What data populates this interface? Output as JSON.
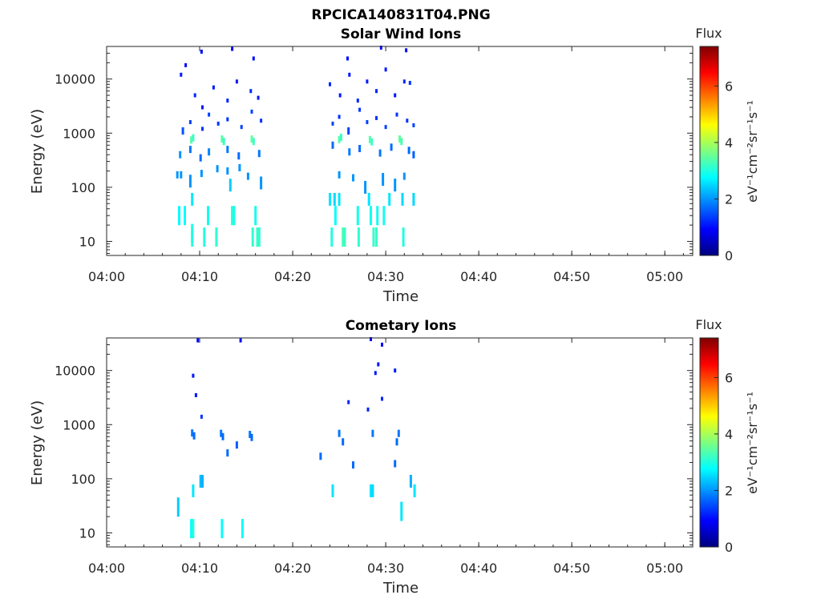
{
  "figure_title": "RPCICA140831T04.PNG",
  "colors": {
    "axis": "#262626",
    "colormap": [
      "#00007f",
      "#0000ff",
      "#007fff",
      "#00ffff",
      "#7fff7f",
      "#ffff00",
      "#ff7f00",
      "#ff0000",
      "#7f0000"
    ]
  },
  "chart_data": [
    {
      "type": "heatmap",
      "title": "Solar Wind Ions",
      "xlabel": "Time",
      "ylabel": "Energy (eV)",
      "yscale": "log",
      "x_range": [
        "04:00",
        "05:03"
      ],
      "y_range": [
        5.5,
        40000
      ],
      "x_ticks": [
        "04:00",
        "04:10",
        "04:20",
        "04:30",
        "04:40",
        "04:50",
        "05:00"
      ],
      "y_ticks": [
        "10",
        "100",
        "1000",
        "10000"
      ],
      "colorbar": {
        "label": "Flux",
        "units": "eV⁻¹cm⁻²sr⁻¹s⁻¹",
        "range": [
          0,
          7.4
        ],
        "ticks": [
          "0",
          "2",
          "4",
          "6"
        ]
      },
      "points": [
        [
          "04:09.2",
          12,
          3.1
        ],
        [
          "04:09.2",
          14,
          3.0
        ],
        [
          "04:10.5",
          12,
          3.0
        ],
        [
          "04:11.8",
          12,
          3.1
        ],
        [
          "04:15.7",
          12,
          3.1
        ],
        [
          "04:16.2",
          12,
          3.2
        ],
        [
          "04:16.4",
          12,
          3.1
        ],
        [
          "04:24.2",
          12,
          3.0
        ],
        [
          "04:25.4",
          12,
          3.3
        ],
        [
          "04:25.6",
          12,
          3.2
        ],
        [
          "04:27.1",
          12,
          3.1
        ],
        [
          "04:28.7",
          12,
          3.1
        ],
        [
          "04:29.0",
          12,
          3.2
        ],
        [
          "04:31.9",
          12,
          3.0
        ],
        [
          "04:07.8",
          30,
          2.8
        ],
        [
          "04:08.4",
          30,
          2.8
        ],
        [
          "04:10.9",
          30,
          2.9
        ],
        [
          "04:13.5",
          30,
          3.0
        ],
        [
          "04:13.7",
          30,
          3.0
        ],
        [
          "04:16.0",
          30,
          2.9
        ],
        [
          "04:24.6",
          30,
          2.8
        ],
        [
          "04:27.0",
          30,
          2.9
        ],
        [
          "04:28.4",
          30,
          2.9
        ],
        [
          "04:29.1",
          30,
          2.9
        ],
        [
          "04:29.8",
          30,
          2.9
        ],
        [
          "04:09.2",
          60,
          2.6
        ],
        [
          "04:13.3",
          110,
          2.4
        ],
        [
          "04:24.0",
          60,
          2.6
        ],
        [
          "04:24.5",
          60,
          2.5
        ],
        [
          "04:25.0",
          60,
          2.6
        ],
        [
          "04:28.2",
          60,
          2.6
        ],
        [
          "04:30.4",
          60,
          2.6
        ],
        [
          "04:31.8",
          60,
          2.5
        ],
        [
          "04:33.0",
          60,
          2.5
        ],
        [
          "04:07.6",
          170,
          2.0
        ],
        [
          "04:08.0",
          170,
          2.0
        ],
        [
          "04:09.0",
          130,
          2.0
        ],
        [
          "04:10.2",
          180,
          2.0
        ],
        [
          "04:11.9",
          220,
          2.0
        ],
        [
          "04:13.0",
          200,
          2.0
        ],
        [
          "04:14.3",
          230,
          2.0
        ],
        [
          "04:15.2",
          160,
          2.0
        ],
        [
          "04:16.6",
          120,
          2.0
        ],
        [
          "04:25.0",
          170,
          2.0
        ],
        [
          "04:26.5",
          150,
          2.0
        ],
        [
          "04:27.8",
          100,
          2.0
        ],
        [
          "04:29.7",
          140,
          2.0
        ],
        [
          "04:31.0",
          110,
          2.0
        ],
        [
          "04:32.0",
          160,
          2.0
        ],
        [
          "04:09.1",
          750,
          3.4
        ],
        [
          "04:09.3",
          820,
          3.2
        ],
        [
          "04:12.4",
          780,
          3.4
        ],
        [
          "04:12.6",
          700,
          3.2
        ],
        [
          "04:15.6",
          780,
          3.5
        ],
        [
          "04:15.8",
          700,
          3.2
        ],
        [
          "04:25.0",
          760,
          3.4
        ],
        [
          "04:25.2",
          840,
          3.2
        ],
        [
          "04:28.3",
          760,
          3.4
        ],
        [
          "04:28.5",
          690,
          3.2
        ],
        [
          "04:31.5",
          780,
          3.5
        ],
        [
          "04:31.7",
          700,
          3.3
        ],
        [
          "04:07.9",
          400,
          2.0
        ],
        [
          "04:09.0",
          500,
          1.8
        ],
        [
          "04:10.1",
          350,
          1.7
        ],
        [
          "04:11.0",
          450,
          1.9
        ],
        [
          "04:13.0",
          500,
          1.8
        ],
        [
          "04:14.2",
          380,
          1.7
        ],
        [
          "04:16.4",
          420,
          1.8
        ],
        [
          "04:24.3",
          600,
          1.7
        ],
        [
          "04:26.1",
          450,
          1.8
        ],
        [
          "04:27.2",
          520,
          1.7
        ],
        [
          "04:29.4",
          430,
          1.8
        ],
        [
          "04:30.6",
          550,
          1.7
        ],
        [
          "04:32.5",
          480,
          1.7
        ],
        [
          "04:33.0",
          400,
          1.6
        ],
        [
          "04:08.2",
          1100,
          1.5
        ],
        [
          "04:09.0",
          1600,
          1.4
        ],
        [
          "04:10.3",
          1200,
          1.3
        ],
        [
          "04:11.0",
          2200,
          1.4
        ],
        [
          "04:12.0",
          1500,
          1.3
        ],
        [
          "04:13.0",
          1800,
          1.3
        ],
        [
          "04:14.5",
          1300,
          1.4
        ],
        [
          "04:15.6",
          2500,
          1.4
        ],
        [
          "04:16.6",
          1700,
          1.3
        ],
        [
          "04:24.3",
          1500,
          1.4
        ],
        [
          "04:25.0",
          2000,
          1.3
        ],
        [
          "04:26.0",
          1100,
          1.4
        ],
        [
          "04:27.2",
          2700,
          1.3
        ],
        [
          "04:28.0",
          1600,
          1.4
        ],
        [
          "04:29.0",
          1900,
          1.3
        ],
        [
          "04:30.0",
          1300,
          1.4
        ],
        [
          "04:31.2",
          2200,
          1.3
        ],
        [
          "04:32.3",
          1700,
          1.3
        ],
        [
          "04:33.0",
          1400,
          1.4
        ],
        [
          "04:08.0",
          12000,
          1.1
        ],
        [
          "04:09.5",
          5000,
          1.2
        ],
        [
          "04:10.3",
          3000,
          1.1
        ],
        [
          "04:11.5",
          7000,
          1.1
        ],
        [
          "04:13.0",
          4000,
          1.2
        ],
        [
          "04:14.0",
          9000,
          1.1
        ],
        [
          "04:15.5",
          6000,
          1.2
        ],
        [
          "04:16.3",
          4500,
          1.1
        ],
        [
          "04:24.0",
          8000,
          1.2
        ],
        [
          "04:25.1",
          5000,
          1.1
        ],
        [
          "04:26.1",
          12000,
          1.1
        ],
        [
          "04:27.0",
          4000,
          1.2
        ],
        [
          "04:28.0",
          9000,
          1.1
        ],
        [
          "04:29.0",
          6000,
          1.2
        ],
        [
          "04:30.0",
          15000,
          1.1
        ],
        [
          "04:31.0",
          5000,
          1.1
        ],
        [
          "04:32.0",
          9000,
          1.2
        ],
        [
          "04:32.6",
          8500,
          1.3
        ],
        [
          "04:08.5",
          18000,
          1.0
        ],
        [
          "04:10.2",
          32000,
          1.0
        ],
        [
          "04:13.5",
          36000,
          1.0
        ],
        [
          "04:15.8",
          24000,
          1.0
        ],
        [
          "04:25.9",
          24000,
          1.0
        ],
        [
          "04:29.5",
          38000,
          1.0
        ],
        [
          "04:32.2",
          34000,
          1.0
        ]
      ]
    },
    {
      "type": "heatmap",
      "title": "Cometary Ions",
      "xlabel": "Time",
      "ylabel": "Energy (eV)",
      "yscale": "log",
      "x_range": [
        "04:00",
        "05:03"
      ],
      "y_range": [
        5.5,
        40000
      ],
      "x_ticks": [
        "04:00",
        "04:10",
        "04:20",
        "04:30",
        "04:40",
        "04:50",
        "05:00"
      ],
      "y_ticks": [
        "10",
        "100",
        "1000",
        "10000"
      ],
      "colorbar": {
        "label": "Flux",
        "units": "eV⁻¹cm⁻²sr⁻¹s⁻¹",
        "range": [
          0,
          7.4
        ],
        "ticks": [
          "0",
          "2",
          "4",
          "6"
        ]
      },
      "points": [
        [
          "04:09.1",
          12,
          2.8
        ],
        [
          "04:09.3",
          12,
          3.0
        ],
        [
          "04:12.4",
          12,
          2.8
        ],
        [
          "04:14.6",
          12,
          2.8
        ],
        [
          "04:07.7",
          30,
          2.4
        ],
        [
          "04:31.7",
          25,
          2.6
        ],
        [
          "04:09.3",
          60,
          2.6
        ],
        [
          "04:10.1",
          90,
          2.3
        ],
        [
          "04:10.3",
          90,
          2.2
        ],
        [
          "04:24.3",
          60,
          2.6
        ],
        [
          "04:28.4",
          60,
          2.6
        ],
        [
          "04:28.6",
          60,
          2.5
        ],
        [
          "04:32.7",
          90,
          2.2
        ],
        [
          "04:33.1",
          60,
          2.6
        ],
        [
          "04:13.0",
          300,
          1.7
        ],
        [
          "04:14.0",
          420,
          1.6
        ],
        [
          "04:23.0",
          260,
          1.7
        ],
        [
          "04:26.5",
          180,
          1.7
        ],
        [
          "04:31.0",
          190,
          1.7
        ],
        [
          "04:09.2",
          700,
          1.8
        ],
        [
          "04:09.4",
          620,
          1.7
        ],
        [
          "04:12.3",
          690,
          1.8
        ],
        [
          "04:12.5",
          600,
          1.7
        ],
        [
          "04:15.4",
          660,
          1.8
        ],
        [
          "04:15.6",
          580,
          1.7
        ],
        [
          "04:25.0",
          690,
          1.8
        ],
        [
          "04:25.4",
          480,
          1.7
        ],
        [
          "04:28.6",
          690,
          1.8
        ],
        [
          "04:31.4",
          690,
          1.8
        ],
        [
          "04:31.2",
          480,
          1.7
        ],
        [
          "04:10.2",
          1400,
          1.3
        ],
        [
          "04:26.0",
          2600,
          1.2
        ],
        [
          "04:28.1",
          1900,
          1.2
        ],
        [
          "04:29.6",
          3000,
          1.2
        ],
        [
          "04:09.3",
          8000,
          1.1
        ],
        [
          "04:09.6",
          3500,
          1.1
        ],
        [
          "04:28.9",
          9000,
          1.1
        ],
        [
          "04:29.2",
          13000,
          1.1
        ],
        [
          "04:31.0",
          10000,
          1.1
        ],
        [
          "04:09.8",
          36000,
          1.0
        ],
        [
          "04:14.4",
          36000,
          1.0
        ],
        [
          "04:28.4",
          38000,
          1.0
        ],
        [
          "04:29.6",
          30000,
          1.0
        ]
      ]
    }
  ]
}
